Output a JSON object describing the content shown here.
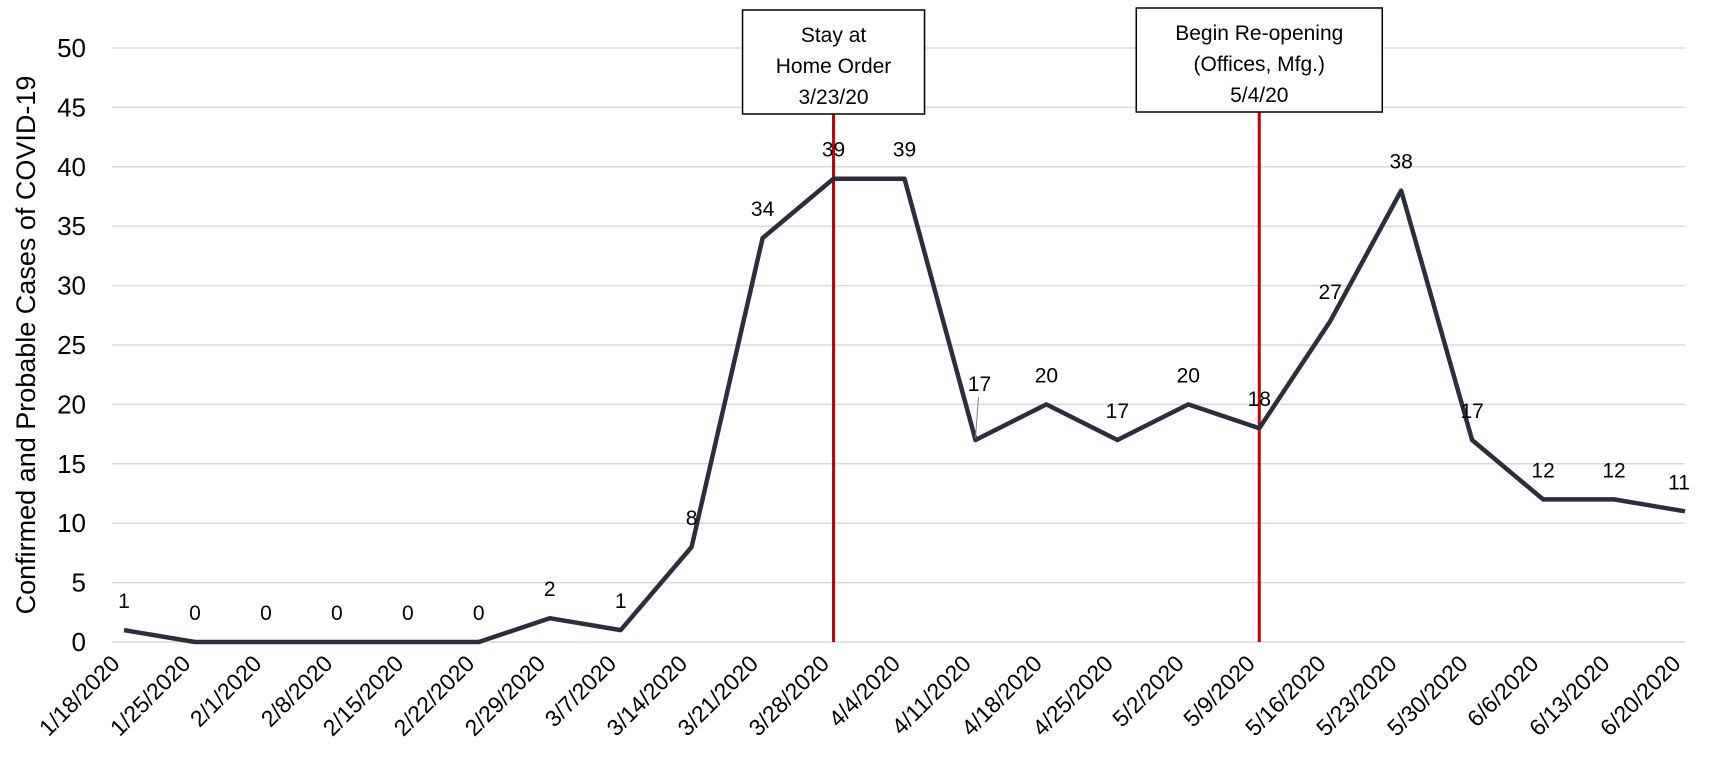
{
  "chart_data": {
    "type": "line",
    "title": "",
    "xlabel": "",
    "ylabel": "Confirmed and Probable Cases of COVID-19",
    "ylim": [
      0,
      50
    ],
    "yticks": [
      0,
      5,
      10,
      15,
      20,
      25,
      30,
      35,
      40,
      45,
      50
    ],
    "grid": true,
    "legend": "none",
    "categories": [
      "1/18/2020",
      "1/25/2020",
      "2/1/2020",
      "2/8/2020",
      "2/15/2020",
      "2/22/2020",
      "2/29/2020",
      "3/7/2020",
      "3/14/2020",
      "3/21/2020",
      "3/28/2020",
      "4/4/2020",
      "4/11/2020",
      "4/18/2020",
      "4/25/2020",
      "5/2/2020",
      "5/9/2020",
      "5/16/2020",
      "5/23/2020",
      "5/30/2020",
      "6/6/2020",
      "6/13/2020",
      "6/20/2020"
    ],
    "series": [
      {
        "values": [
          1,
          0,
          0,
          0,
          0,
          0,
          2,
          1,
          8,
          34,
          39,
          39,
          17,
          20,
          17,
          20,
          18,
          27,
          38,
          17,
          12,
          12,
          11
        ],
        "color": "#2b2e3b"
      }
    ],
    "annotations": [
      {
        "x": "3/28/2020",
        "lines": [
          "Stay at",
          "Home Order",
          "3/23/20"
        ],
        "color": "#c00000"
      },
      {
        "x": "5/9/2020",
        "lines": [
          "Begin Re-opening",
          "(Offices, Mfg.)",
          "5/4/20"
        ],
        "color": "#c00000"
      }
    ],
    "gridline_color": "#d9d9d9"
  }
}
